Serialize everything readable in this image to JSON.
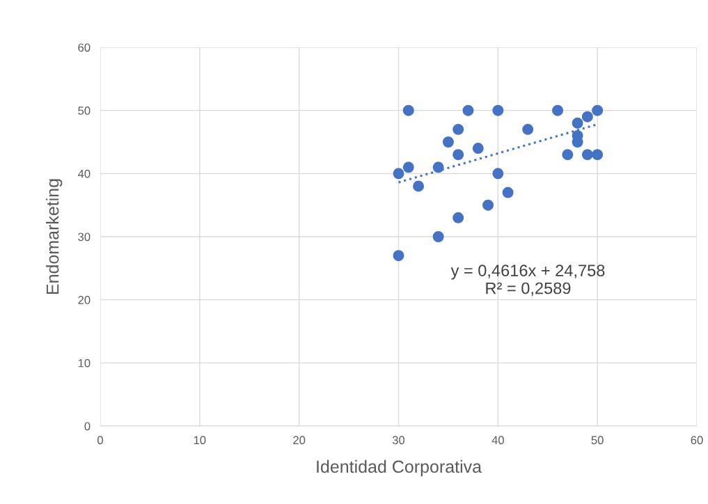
{
  "chart_data": {
    "type": "scatter",
    "xlabel": "Identidad Corporativa",
    "ylabel": "Endomarketing",
    "xlim": [
      0,
      60
    ],
    "xticks": [
      0,
      10,
      20,
      30,
      40,
      50,
      60
    ],
    "ylim": [
      0,
      60
    ],
    "yticks": [
      0,
      10,
      20,
      30,
      40,
      50,
      60
    ],
    "grid": true,
    "marker": "circle",
    "series": [
      {
        "color": "#4472c4",
        "x": [
          30,
          30,
          31,
          31,
          32,
          34,
          34,
          35,
          36,
          36,
          36,
          37,
          38,
          39,
          40,
          40,
          41,
          43,
          46,
          47,
          48,
          48,
          48,
          49,
          49,
          50,
          50
        ],
        "values": [
          40,
          27,
          50,
          41,
          38,
          41,
          30,
          45,
          47,
          43,
          33,
          50,
          44,
          35,
          50,
          40,
          37,
          47,
          50,
          43,
          48,
          46,
          45,
          49,
          43,
          50,
          43
        ]
      },
      {
        "type": "line",
        "color": "#4472c4",
        "line_style": "dotted",
        "marker": "none",
        "x": [
          30,
          50
        ],
        "values": [
          38.6,
          47.8
        ]
      }
    ],
    "annotations": [
      "y = 0,4616x + 24,758\nR² = 0,2589"
    ]
  }
}
